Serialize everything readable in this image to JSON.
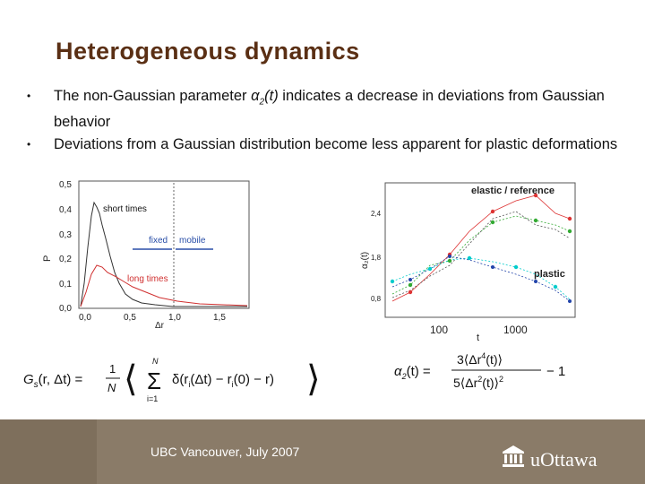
{
  "title": "Heterogeneous dynamics",
  "bullets": [
    {
      "pre": "The non-Gaussian parameter ",
      "param": "α",
      "sub": "2",
      "post_param": "(t)",
      "rest": " indicates a decrease in deviations from Gaussian behavior"
    },
    {
      "pre": "Deviations from a Gaussian distribution become less apparent for plastic deformations"
    }
  ],
  "left_plot": {
    "ylabel": "P",
    "xlabel": "Δr",
    "yticks": [
      "0,5",
      "0,4",
      "0,3",
      "0,2",
      "0,1",
      "0,0"
    ],
    "xticks": [
      "0,0",
      "0,5",
      "1,0",
      "1,5"
    ],
    "ann_short": "short times",
    "ann_long": "long times",
    "ann_fixed": "fixed",
    "ann_mobile": "mobile"
  },
  "right_plot": {
    "ylabel": "α₂(t)",
    "xlabel": "t",
    "yticks": [
      "2,4",
      "1,8",
      "0,8"
    ],
    "xticks": [
      "100",
      "1000"
    ],
    "label_elastic": "elastic / reference",
    "label_plastic": "plastic"
  },
  "formula_left": "G_s(r, Δt) = 1/N ⟨ Σ_{i=1}^{N} δ(r_i(Δt) − r_i(0) − r) ⟩",
  "formula_right": "α₂(t) = 3⟨Δr⁴(t)⟩ / 5⟨Δr²(t)⟩² − 1",
  "footer_text": "UBC Vancouver, July 2007",
  "logo_text": "uOttawa",
  "colors": {
    "title": "#5a2f14",
    "footer": "#8a7b68",
    "footer_dark": "#7e6f5c"
  }
}
